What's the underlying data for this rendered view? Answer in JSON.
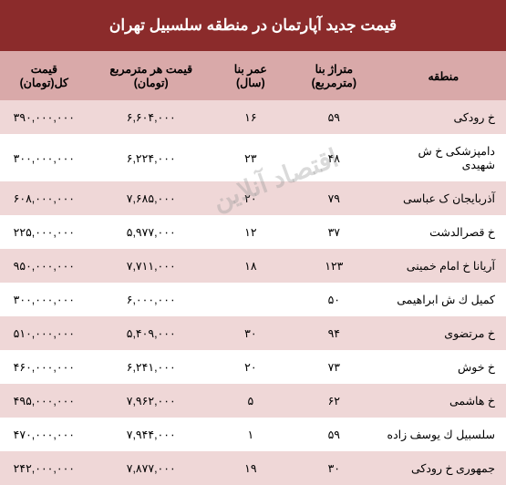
{
  "title": "قیمت جدید آپارتمان در منطقه سلسبیل تهران",
  "watermark": "اقتصاد آنلاین",
  "table": {
    "columns": [
      "منطقه",
      "متراژ بنا (مترمربع)",
      "عمر بنا (سال)",
      "قیمت هر مترمربع (تومان)",
      "قیمت کل(تومان)"
    ],
    "rows": [
      [
        "خ رودکی",
        "۵۹",
        "۱۶",
        "۶,۶۰۴,۰۰۰",
        "۳۹۰,۰۰۰,۰۰۰"
      ],
      [
        "دامپزشکی خ ش شهیدی",
        "۴۸",
        "۲۳",
        "۶,۲۲۴,۰۰۰",
        "۳۰۰,۰۰۰,۰۰۰"
      ],
      [
        "آذربایجان ک عباسی",
        "۷۹",
        "۲۰",
        "۷,۶۸۵,۰۰۰",
        "۶۰۸,۰۰۰,۰۰۰"
      ],
      [
        "خ قصرالدشت",
        "۳۷",
        "۱۲",
        "۵,۹۷۷,۰۰۰",
        "۲۲۵,۰۰۰,۰۰۰"
      ],
      [
        "آریانا خ امام خمینی",
        "۱۲۳",
        "۱۸",
        "۷,۷۱۱,۰۰۰",
        "۹۵۰,۰۰۰,۰۰۰"
      ],
      [
        "کمیل ك ش ابراهیمی",
        "۵۰",
        "",
        "۶,۰۰۰,۰۰۰",
        "۳۰۰,۰۰۰,۰۰۰"
      ],
      [
        "خ مرتضوی",
        "۹۴",
        "۳۰",
        "۵,۴۰۹,۰۰۰",
        "۵۱۰,۰۰۰,۰۰۰"
      ],
      [
        "خ خوش",
        "۷۳",
        "۲۰",
        "۶,۲۴۱,۰۰۰",
        "۴۶۰,۰۰۰,۰۰۰"
      ],
      [
        "خ هاشمی",
        "۶۲",
        "۵",
        "۷,۹۶۲,۰۰۰",
        "۴۹۵,۰۰۰,۰۰۰"
      ],
      [
        "سلسبیل ك یوسف زاده",
        "۵۹",
        "۱",
        "۷,۹۴۴,۰۰۰",
        "۴۷۰,۰۰۰,۰۰۰"
      ],
      [
        "جمهوری خ رودکی",
        "۳۰",
        "۱۹",
        "۷,۸۷۷,۰۰۰",
        "۲۴۲,۰۰۰,۰۰۰"
      ]
    ]
  },
  "colors": {
    "header_bg": "#8b2b2b",
    "header_text": "#ffffff",
    "thead_bg": "#d9a9a9",
    "row_odd_bg": "#efd7d7",
    "row_even_bg": "#ffffff",
    "text": "#000000"
  }
}
